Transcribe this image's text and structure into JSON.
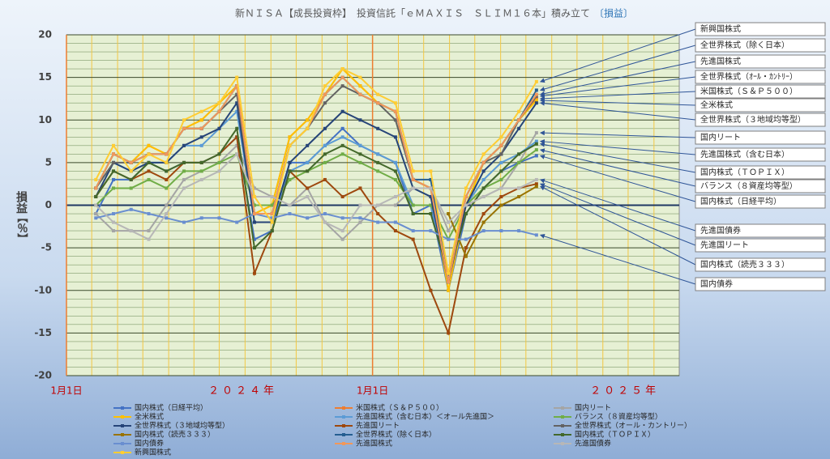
{
  "chart_data": {
    "type": "line",
    "title": "新ＮＩＳＡ【成長投資枠】　投資信託「ｅＭＡＸＩＳ　ＳＬＩＭ１６本」積み立て",
    "title_suffix": "〔損益〕",
    "y_label": "損益",
    "y_unit": "【％】",
    "ylim": [
      -20,
      20
    ],
    "yticks": [
      -20,
      -15,
      -10,
      -5,
      0,
      5,
      10,
      15,
      20
    ],
    "minor_yticks": [
      -19,
      -18,
      -17,
      -16,
      -14,
      -13,
      -12,
      -11,
      -9,
      -8,
      -7,
      -6,
      -4,
      -3,
      -2,
      -1,
      1,
      2,
      3,
      4,
      6,
      7,
      8,
      9,
      11,
      12,
      13,
      14,
      16,
      17,
      18,
      19
    ],
    "xlim": [
      0,
      104.3
    ],
    "xgrid": [
      4.3,
      8.7,
      13,
      17.4,
      21.7,
      26,
      30.4,
      34.8,
      39.1,
      43.5,
      47.8,
      56.5,
      60.8,
      65.2,
      69.5,
      73.9,
      78.2,
      82.6,
      86.9,
      91.3,
      95.6,
      100
    ],
    "xticks": [
      {
        "value": 0,
        "label": "1月1日"
      },
      {
        "value": 52.1,
        "label": "1月1日"
      }
    ],
    "year_labels": [
      {
        "value": 30,
        "label": "２０２４年"
      },
      {
        "value": 95,
        "label": "２０２５年"
      }
    ],
    "x": [
      5,
      8,
      11,
      14,
      17,
      20,
      23,
      26,
      29,
      32,
      35,
      38,
      41,
      44,
      47,
      50,
      53,
      56,
      59,
      62,
      65,
      68,
      71,
      74,
      77,
      80
    ],
    "series": [
      {
        "name": "国内株式（日経平均）",
        "color": "#4472c4",
        "values": [
          -1,
          3,
          3,
          5,
          4,
          5,
          5,
          6,
          8,
          -4,
          -3,
          5,
          5,
          7,
          9,
          7,
          6,
          5,
          -1,
          0,
          -10,
          -1,
          2,
          4,
          5,
          5.8
        ]
      },
      {
        "name": "米国株式（Ｓ＆Ｐ５００）",
        "color": "#ed7d31",
        "values": [
          2,
          6,
          5,
          7,
          6,
          9,
          10,
          12,
          14,
          -1,
          0,
          8,
          10,
          13,
          16,
          14,
          12,
          11,
          3,
          2,
          -9,
          0,
          5,
          7,
          10,
          12.5
        ]
      },
      {
        "name": "国内リート",
        "color": "#a5a5a5",
        "values": [
          -1,
          -3,
          -3,
          -3,
          0,
          3,
          4,
          5,
          7,
          2,
          1,
          0,
          2,
          -2,
          -4,
          -2,
          0,
          0,
          2,
          2,
          -3,
          0,
          1,
          2,
          5,
          8.5
        ]
      },
      {
        "name": "全米株式",
        "color": "#ffc000",
        "values": [
          2,
          6,
          5,
          7,
          6,
          9,
          10,
          12,
          14,
          -1,
          0,
          8,
          10,
          13,
          16,
          14,
          12,
          11,
          3,
          2,
          -10,
          0,
          5,
          7,
          10,
          12.3
        ]
      },
      {
        "name": "先進国株式（含む日本）＜オール先進国＞",
        "color": "#5b9bd5",
        "values": [
          2,
          5,
          4,
          5,
          5,
          7,
          7,
          9,
          11,
          -2,
          -2,
          4,
          5,
          7,
          8,
          7,
          6,
          5,
          0,
          0,
          -8,
          0,
          3,
          5,
          6,
          7.5
        ]
      },
      {
        "name": "バランス（８資産均等型）",
        "color": "#70ad47",
        "values": [
          0,
          2,
          2,
          3,
          2,
          4,
          4,
          5,
          6,
          0,
          0,
          3,
          4,
          5,
          6,
          5,
          4,
          3,
          0,
          0,
          -4,
          0,
          2,
          3,
          5,
          6.5
        ]
      },
      {
        "name": "全世界株式（３地域均等型）",
        "color": "#264478",
        "values": [
          1,
          5,
          4,
          5,
          5,
          7,
          8,
          9,
          12,
          -2,
          -2,
          5,
          7,
          9,
          11,
          10,
          9,
          8,
          2,
          1,
          -9,
          0,
          4,
          6,
          9,
          12
        ]
      },
      {
        "name": "先進国リート",
        "color": "#9e480e",
        "values": [
          1,
          4,
          3,
          4,
          3,
          5,
          5,
          6,
          8,
          -8,
          -3,
          4,
          2,
          3,
          1,
          2,
          -1,
          -3,
          -4,
          -10,
          -15,
          -5,
          -1,
          1,
          2,
          2.5
        ]
      },
      {
        "name": "全世界株式（オール・カントリー）",
        "color": "#636363",
        "values": [
          2,
          5,
          5,
          6,
          6,
          9,
          9,
          11,
          13,
          -1,
          -1,
          7,
          9,
          12,
          14,
          13,
          12,
          10,
          3,
          2,
          -9,
          1,
          5,
          6,
          10,
          12.8
        ]
      },
      {
        "name": "国内株式（読売３３３）",
        "color": "#997300",
        "values": [
          null,
          null,
          null,
          null,
          null,
          null,
          null,
          null,
          null,
          null,
          null,
          null,
          null,
          null,
          null,
          null,
          null,
          null,
          null,
          null,
          -1,
          -6,
          -2,
          0,
          1,
          2.2
        ]
      },
      {
        "name": "全世界株式（除く日本）",
        "color": "#255e91",
        "values": [
          2,
          6,
          5,
          6,
          6,
          9,
          9,
          11,
          14,
          -1,
          -1,
          7,
          9,
          13,
          15,
          13,
          12,
          11,
          3,
          3,
          -9,
          1,
          5,
          7,
          10,
          13.5
        ]
      },
      {
        "name": "国内株式（ＴＯＰＩＸ）",
        "color": "#43682b",
        "values": [
          1,
          4,
          3,
          5,
          4,
          5,
          5,
          6,
          9,
          -5,
          -3,
          4,
          4,
          6,
          7,
          6,
          5,
          4,
          -1,
          -1,
          -8,
          -1,
          2,
          4,
          6,
          7.2
        ]
      },
      {
        "name": "国内債券",
        "color": "#698ed0",
        "values": [
          -1.5,
          -1,
          -0.5,
          -1,
          -1.5,
          -2,
          -1.5,
          -1.5,
          -2,
          -1,
          -1.5,
          -1,
          -1.5,
          -1,
          -1.5,
          -1.5,
          -2,
          -2,
          -3,
          -3,
          -4,
          -4,
          -3,
          -3,
          -3,
          -3.5
        ]
      },
      {
        "name": "先進国株式",
        "color": "#f1975a",
        "values": [
          2,
          6,
          5,
          6,
          6,
          9,
          9,
          11,
          14,
          -1,
          -1,
          7,
          9,
          13,
          15,
          13,
          12,
          11,
          3,
          2,
          -9,
          1,
          5,
          7,
          10,
          13
        ]
      },
      {
        "name": "先進国債券",
        "color": "#b7b7b7",
        "values": [
          0,
          -2,
          -3,
          -4,
          -1,
          2,
          3,
          4,
          6,
          1,
          1,
          0,
          1,
          -2,
          -3,
          0,
          0,
          1,
          2,
          2,
          -2,
          0,
          1,
          2,
          2,
          3
        ]
      },
      {
        "name": "新興国株式",
        "color": "#ffcd33",
        "values": [
          3,
          7,
          4,
          6,
          5,
          10,
          11,
          12,
          15,
          1,
          -2,
          7,
          9,
          14,
          16,
          15,
          13,
          12,
          4,
          4,
          -8,
          2,
          6,
          8,
          11,
          14.5
        ]
      }
    ],
    "callouts": [
      "新興国株式",
      "全世界株式（除く日本）",
      "先進国株式",
      "全世界株式（ｵｰﾙ・ｶﾝﾄﾘｰ）",
      "米国株式（Ｓ＆Ｐ５００）",
      "全米株式",
      "全世界株式（３地域均等型）",
      "国内リート",
      "先進国株式（含む日本）",
      "国内株式（ＴＯＰＩＸ）",
      "バランス（８資産均等型）",
      "国内株式（日経平均）",
      "先進国債券",
      "先進国リート",
      "国内株式（読売３３３）",
      "国内債券"
    ]
  }
}
